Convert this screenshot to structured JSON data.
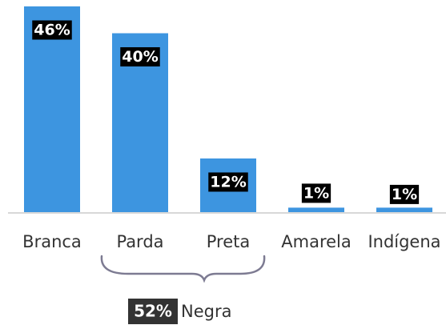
{
  "chart_data": {
    "type": "bar",
    "categories": [
      "Branca",
      "Parda",
      "Preta",
      "Amarela",
      "Indígena"
    ],
    "values": [
      46,
      40,
      12,
      1,
      1
    ],
    "value_labels": [
      "46%",
      "40%",
      "12%",
      "1%",
      "1%"
    ],
    "color": "#3d95e0",
    "annotation": {
      "label": "52%",
      "text": "Negra"
    }
  }
}
